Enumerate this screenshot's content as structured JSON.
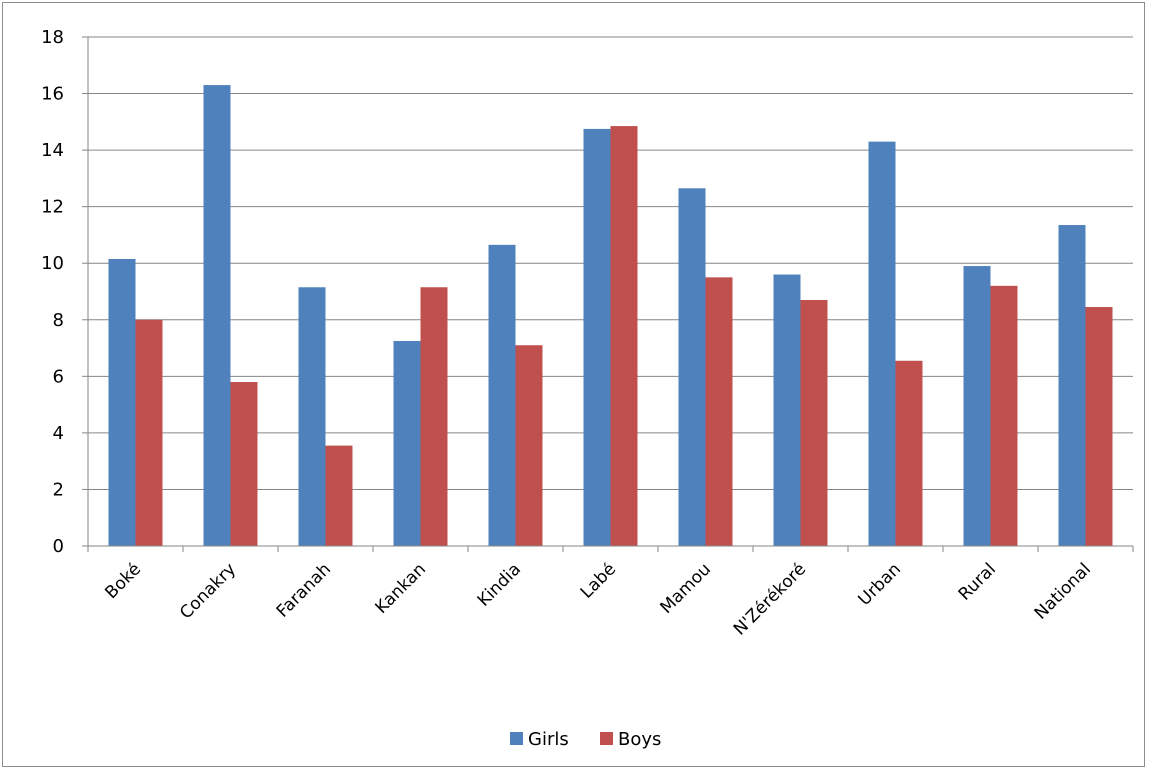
{
  "chart_data": {
    "type": "bar",
    "title": "",
    "xlabel": "",
    "ylabel": "",
    "categories": [
      "Boké",
      "Conakry",
      "Faranah",
      "Kankan",
      "Kindia",
      "Labé",
      "Mamou",
      "N'Zérékoré",
      "Urban",
      "Rural",
      "National"
    ],
    "series": [
      {
        "name": "Girls",
        "color": "#4f81bd",
        "values": [
          10.15,
          16.3,
          9.15,
          7.25,
          10.65,
          14.75,
          12.65,
          9.6,
          14.3,
          9.9,
          11.35
        ]
      },
      {
        "name": "Boys",
        "color": "#c0504d",
        "values": [
          8.0,
          5.8,
          3.55,
          9.15,
          7.1,
          14.85,
          9.5,
          8.7,
          6.55,
          9.2,
          8.45
        ]
      }
    ],
    "ylim": [
      0,
      18
    ],
    "yticks": [
      0,
      2,
      4,
      6,
      8,
      10,
      12,
      14,
      16,
      18
    ],
    "grid": true,
    "legend_position": "bottom"
  }
}
